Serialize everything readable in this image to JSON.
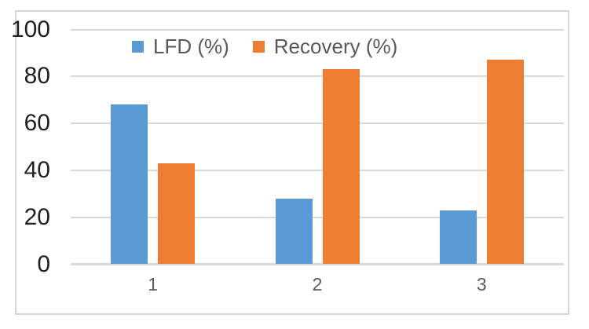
{
  "chart_data": {
    "type": "bar",
    "categories": [
      "1",
      "2",
      "3"
    ],
    "series": [
      {
        "name": "LFD (%)",
        "color": "#5B9BD5",
        "values": [
          68,
          28,
          23
        ]
      },
      {
        "name": "Recovery (%)",
        "color": "#ED7D31",
        "values": [
          43,
          83,
          87
        ]
      }
    ],
    "ylim": [
      0,
      100
    ],
    "yticks": [
      0,
      20,
      40,
      60,
      80,
      100
    ],
    "grid": true,
    "legend_position": "top-center"
  },
  "colors": {
    "gridline": "#D9D9D9",
    "axis_line": "#D9D9D9",
    "frame_border": "#D6D6D6",
    "y_tick_label": "#1F1F1F",
    "x_tick_label": "#595959",
    "legend_text": "#595959",
    "background": "#FFFFFF"
  }
}
